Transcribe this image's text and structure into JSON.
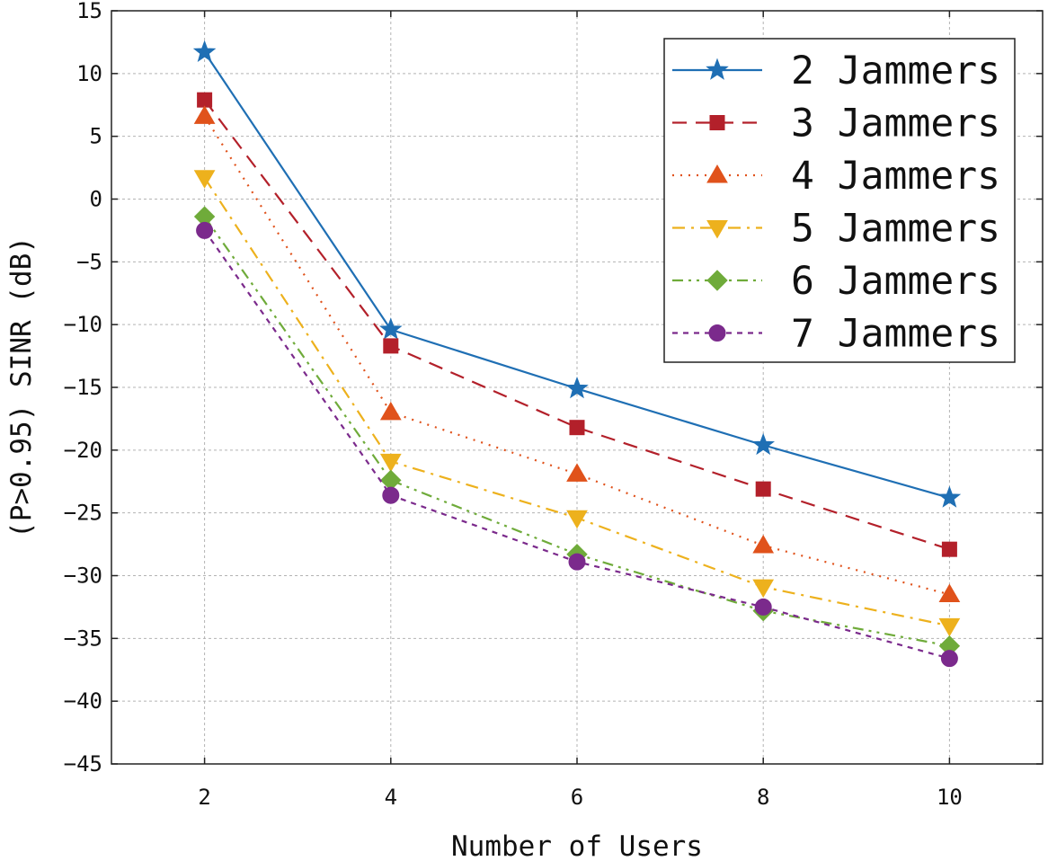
{
  "chart_data": {
    "type": "line",
    "title": "",
    "xlabel": "Number of Users",
    "ylabel": "(P>0.95) SINR (dB)",
    "xlim": [
      1.0,
      11.0
    ],
    "ylim": [
      -45,
      15
    ],
    "xticks": [
      2,
      4,
      6,
      8,
      10
    ],
    "yticks": [
      15,
      10,
      5,
      0,
      -5,
      -10,
      -15,
      -20,
      -25,
      -30,
      -35,
      -40,
      -45
    ],
    "grid": true,
    "legend_position": "top-right",
    "x": [
      2,
      4,
      6,
      8,
      10
    ],
    "series": [
      {
        "name": "2 Jammers",
        "values": [
          11.7,
          -10.4,
          -15.1,
          -19.6,
          -23.8
        ],
        "color": "#1f6fb4",
        "dash": "solid",
        "marker": "star"
      },
      {
        "name": "3 Jammers",
        "values": [
          7.9,
          -11.7,
          -18.2,
          -23.1,
          -27.9
        ],
        "color": "#b3202a",
        "dash": "dashed",
        "marker": "square"
      },
      {
        "name": "4 Jammers",
        "values": [
          6.6,
          -17.0,
          -21.9,
          -27.6,
          -31.5
        ],
        "color": "#e0521b",
        "dash": "dotted",
        "marker": "triangle-up"
      },
      {
        "name": "5 Jammers",
        "values": [
          1.7,
          -20.9,
          -25.4,
          -30.9,
          -34.0
        ],
        "color": "#edb11d",
        "dash": "dashdot",
        "marker": "triangle-down"
      },
      {
        "name": "6 Jammers",
        "values": [
          -1.4,
          -22.4,
          -28.3,
          -32.8,
          -35.6
        ],
        "color": "#6fab3a",
        "dash": "dashdotdot",
        "marker": "diamond"
      },
      {
        "name": "7 Jammers",
        "values": [
          -2.5,
          -23.6,
          -28.9,
          -32.5,
          -36.6
        ],
        "color": "#7b2a8c",
        "dash": "shortdash",
        "marker": "circle"
      }
    ]
  }
}
